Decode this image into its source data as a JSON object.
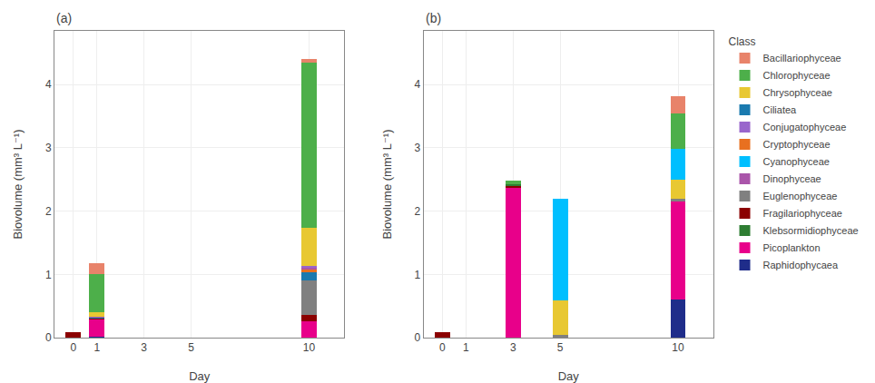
{
  "chart_data": [
    {
      "type": "bar",
      "title": "(a)",
      "x_label": "Day",
      "y_label": "Biovolume (mm³ L⁻¹)",
      "stacked": true,
      "grid": true,
      "x": [
        0,
        1,
        10
      ],
      "xlim": [
        -0.8,
        11.5
      ],
      "ylim": [
        0,
        4.85
      ],
      "xticks": [
        0,
        1,
        3,
        5,
        10
      ],
      "yticks": [
        0,
        1,
        2,
        3,
        4
      ],
      "series": [
        {
          "name": "Raphidophycaea",
          "color": "#1F2D8A",
          "values": [
            0.0,
            0.02,
            0.0
          ]
        },
        {
          "name": "Picoplankton",
          "color": "#E8008A",
          "values": [
            0.0,
            0.26,
            0.26
          ]
        },
        {
          "name": "Fragilariophyceae",
          "color": "#8B0000",
          "values": [
            0.09,
            0.03,
            0.1
          ]
        },
        {
          "name": "Euglenophyceae",
          "color": "#808080",
          "values": [
            0.0,
            0.005,
            0.55
          ]
        },
        {
          "name": "Ciliatea",
          "color": "#1A7AAF",
          "values": [
            0.0,
            0.005,
            0.12
          ]
        },
        {
          "name": "Cryptophyceae",
          "color": "#E87020",
          "values": [
            0.0,
            0.005,
            0.05
          ]
        },
        {
          "name": "Dinophyceae",
          "color": "#AA55AA",
          "values": [
            0.0,
            0.005,
            0.03
          ]
        },
        {
          "name": "Conjugatophyceae",
          "color": "#9966CC",
          "values": [
            0.0,
            0.005,
            0.02
          ]
        },
        {
          "name": "Chrysophyceae",
          "color": "#E8C832",
          "values": [
            0.0,
            0.07,
            0.6
          ]
        },
        {
          "name": "Cyanophyceae",
          "color": "#00BFFF",
          "values": [
            0.0,
            0.0,
            0.0
          ]
        },
        {
          "name": "Klebsormidiophyceae",
          "color": "#2E7D32",
          "values": [
            0.0,
            0.0,
            0.0
          ]
        },
        {
          "name": "Chlorophyceae",
          "color": "#4DAF4A",
          "values": [
            0.0,
            0.6,
            2.62
          ]
        },
        {
          "name": "Bacillariophyceae",
          "color": "#E8836A",
          "values": [
            0.0,
            0.17,
            0.05
          ]
        }
      ]
    },
    {
      "type": "bar",
      "title": "(b)",
      "x_label": "Day",
      "y_label": "Biovolume (mm³ L⁻¹)",
      "stacked": true,
      "grid": true,
      "legend": "right",
      "legend_title": "Class",
      "x": [
        0,
        3,
        5,
        10
      ],
      "xlim": [
        -0.8,
        11.5
      ],
      "ylim": [
        0,
        4.85
      ],
      "xticks": [
        0,
        1,
        3,
        5,
        10
      ],
      "yticks": [
        0,
        1,
        2,
        3,
        4
      ],
      "series": [
        {
          "name": "Raphidophycaea",
          "color": "#1F2D8A",
          "values": [
            0.0,
            0.0,
            0.0,
            0.6
          ]
        },
        {
          "name": "Picoplankton",
          "color": "#E8008A",
          "values": [
            0.0,
            2.38,
            0.0,
            1.55
          ]
        },
        {
          "name": "Fragilariophyceae",
          "color": "#8B0000",
          "values": [
            0.09,
            0.01,
            0.0,
            0.0
          ]
        },
        {
          "name": "Euglenophyceae",
          "color": "#808080",
          "values": [
            0.0,
            0.0,
            0.04,
            0.04
          ]
        },
        {
          "name": "Ciliatea",
          "color": "#1A7AAF",
          "values": [
            0.0,
            0.0,
            0.0,
            0.0
          ]
        },
        {
          "name": "Cryptophyceae",
          "color": "#E87020",
          "values": [
            0.0,
            0.0,
            0.0,
            0.0
          ]
        },
        {
          "name": "Dinophyceae",
          "color": "#AA55AA",
          "values": [
            0.0,
            0.0,
            0.0,
            0.0
          ]
        },
        {
          "name": "Conjugatophyceae",
          "color": "#9966CC",
          "values": [
            0.0,
            0.0,
            0.0,
            0.0
          ]
        },
        {
          "name": "Chrysophyceae",
          "color": "#E8C832",
          "values": [
            0.0,
            0.0,
            0.55,
            0.3
          ]
        },
        {
          "name": "Cyanophyceae",
          "color": "#00BFFF",
          "values": [
            0.0,
            0.0,
            1.6,
            0.5
          ]
        },
        {
          "name": "Klebsormidiophyceae",
          "color": "#2E7D32",
          "values": [
            0.0,
            0.04,
            0.0,
            0.0
          ]
        },
        {
          "name": "Chlorophyceae",
          "color": "#4DAF4A",
          "values": [
            0.0,
            0.05,
            0.0,
            0.55
          ]
        },
        {
          "name": "Bacillariophyceae",
          "color": "#E8836A",
          "values": [
            0.0,
            0.0,
            0.0,
            0.28
          ]
        }
      ]
    }
  ]
}
